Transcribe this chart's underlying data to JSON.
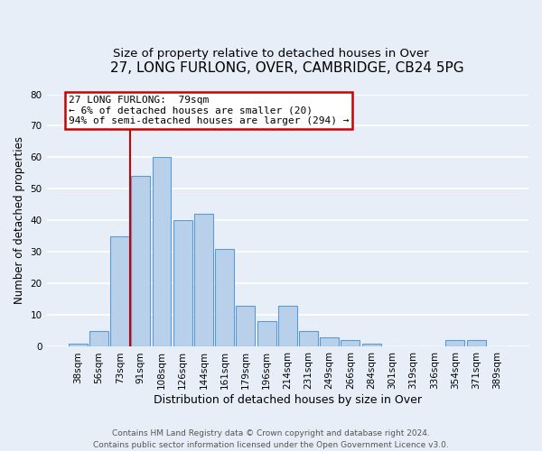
{
  "title": "27, LONG FURLONG, OVER, CAMBRIDGE, CB24 5PG",
  "subtitle": "Size of property relative to detached houses in Over",
  "xlabel": "Distribution of detached houses by size in Over",
  "ylabel": "Number of detached properties",
  "categories": [
    "38sqm",
    "56sqm",
    "73sqm",
    "91sqm",
    "108sqm",
    "126sqm",
    "144sqm",
    "161sqm",
    "179sqm",
    "196sqm",
    "214sqm",
    "231sqm",
    "249sqm",
    "266sqm",
    "284sqm",
    "301sqm",
    "319sqm",
    "336sqm",
    "354sqm",
    "371sqm",
    "389sqm"
  ],
  "values": [
    1,
    5,
    35,
    54,
    60,
    40,
    42,
    31,
    13,
    8,
    13,
    5,
    3,
    2,
    1,
    0,
    0,
    0,
    2,
    2,
    0
  ],
  "bar_color": "#b8d0ea",
  "bar_edge_color": "#5b9bd5",
  "background_color": "#e8eef7",
  "grid_color": "#ffffff",
  "red_line_x": 2.5,
  "red_line_color": "#cc0000",
  "annotation_text": "27 LONG FURLONG:  79sqm\n← 6% of detached houses are smaller (20)\n94% of semi-detached houses are larger (294) →",
  "annotation_box_color": "#ffffff",
  "annotation_box_edge_color": "#cc0000",
  "ylim": [
    0,
    80
  ],
  "yticks": [
    0,
    10,
    20,
    30,
    40,
    50,
    60,
    70,
    80
  ],
  "footer_line1": "Contains HM Land Registry data © Crown copyright and database right 2024.",
  "footer_line2": "Contains public sector information licensed under the Open Government Licence v3.0.",
  "title_fontsize": 11,
  "subtitle_fontsize": 9.5,
  "xlabel_fontsize": 9,
  "ylabel_fontsize": 8.5,
  "tick_fontsize": 7.5,
  "footer_fontsize": 6.5,
  "ann_fontsize": 8
}
